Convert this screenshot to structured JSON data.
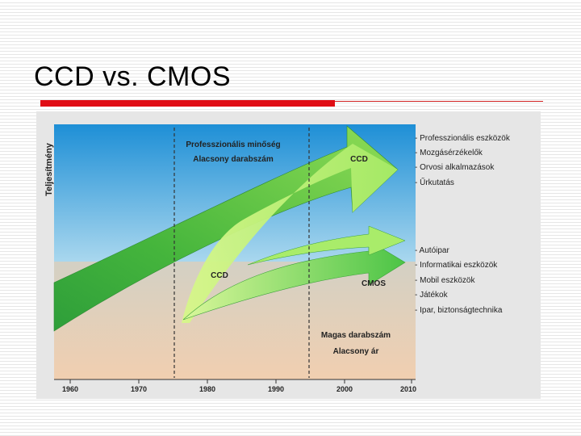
{
  "slide": {
    "title": "CCD vs. CMOS"
  },
  "diagram": {
    "y_axis_label": "Teljesítmény",
    "x_ticks": [
      "1960",
      "1970",
      "1980",
      "1990",
      "2000",
      "2010"
    ],
    "top_zone": {
      "line1": "Professzionális minőség",
      "line2": "Alacsony darabszám"
    },
    "bottom_zone": {
      "line1": "Magas darabszám",
      "line2": "Alacsony ár"
    },
    "arrows": {
      "ccd_upper": "CCD",
      "ccd_lower": "CCD",
      "cmos": "CMOS"
    },
    "ccd_applications": [
      "- Professzionális eszközök",
      "- Mozgásérzékelők",
      "- Orvosi alkalmazások",
      "- Űrkutatás"
    ],
    "cmos_applications": [
      "- Autóipar",
      "- Informatikai eszközök",
      "- Mobil eszközök",
      "- Játékok",
      "- Ipar, biztonságtechnika"
    ],
    "colors": {
      "sky_top": "#1e8fd6",
      "sky_bottom": "#a9d7ee",
      "ground_top": "#d3d0c4",
      "ground_bottom": "#f1cfb0",
      "ccd_dark_green": "#2e9e3a",
      "ccd_light_green": "#b8f074",
      "cmos_green": "#5fd04f"
    }
  }
}
